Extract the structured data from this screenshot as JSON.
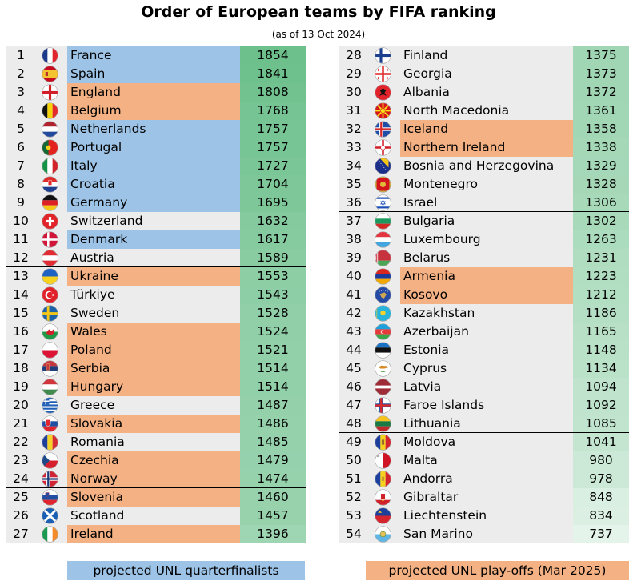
{
  "title": "Order of European teams by FIFA ranking",
  "subtitle": "(as of 13 Oct 2024)",
  "colors": {
    "qf": "#9dc3e6",
    "po": "#f4b183",
    "score_dark": "#6dc08c",
    "score_light": "#e5f4ea",
    "neutral": "#ececec"
  },
  "legend": {
    "qf_label": "projected UNL quarterfinalists",
    "po_label": "projected UNL play-offs (Mar 2025)"
  },
  "teams": [
    {
      "rank": "1",
      "name": "France",
      "points": "1854",
      "status": "qf",
      "flag": "france-flag-icon"
    },
    {
      "rank": "2",
      "name": "Spain",
      "points": "1841",
      "status": "qf",
      "flag": "spain-flag-icon"
    },
    {
      "rank": "3",
      "name": "England",
      "points": "1808",
      "status": "po",
      "flag": "england-flag-icon"
    },
    {
      "rank": "4",
      "name": "Belgium",
      "points": "1768",
      "status": "po",
      "flag": "belgium-flag-icon"
    },
    {
      "rank": "5",
      "name": "Netherlands",
      "points": "1757",
      "status": "qf",
      "flag": "netherlands-flag-icon"
    },
    {
      "rank": "6",
      "name": "Portugal",
      "points": "1757",
      "status": "qf",
      "flag": "portugal-flag-icon"
    },
    {
      "rank": "7",
      "name": "Italy",
      "points": "1727",
      "status": "qf",
      "flag": "italy-flag-icon"
    },
    {
      "rank": "8",
      "name": "Croatia",
      "points": "1704",
      "status": "qf",
      "flag": "croatia-flag-icon"
    },
    {
      "rank": "9",
      "name": "Germany",
      "points": "1695",
      "status": "qf",
      "flag": "germany-flag-icon"
    },
    {
      "rank": "10",
      "name": "Switzerland",
      "points": "1632",
      "status": "none",
      "flag": "switzerland-flag-icon"
    },
    {
      "rank": "11",
      "name": "Denmark",
      "points": "1617",
      "status": "qf",
      "flag": "denmark-flag-icon"
    },
    {
      "rank": "12",
      "name": "Austria",
      "points": "1589",
      "status": "none",
      "flag": "austria-flag-icon",
      "separator": true
    },
    {
      "rank": "13",
      "name": "Ukraine",
      "points": "1553",
      "status": "po",
      "flag": "ukraine-flag-icon"
    },
    {
      "rank": "14",
      "name": "Türkiye",
      "points": "1543",
      "status": "none",
      "flag": "turkiye-flag-icon"
    },
    {
      "rank": "15",
      "name": "Sweden",
      "points": "1528",
      "status": "none",
      "flag": "sweden-flag-icon"
    },
    {
      "rank": "16",
      "name": "Wales",
      "points": "1524",
      "status": "po",
      "flag": "wales-flag-icon"
    },
    {
      "rank": "17",
      "name": "Poland",
      "points": "1521",
      "status": "po",
      "flag": "poland-flag-icon"
    },
    {
      "rank": "18",
      "name": "Serbia",
      "points": "1514",
      "status": "po",
      "flag": "serbia-flag-icon"
    },
    {
      "rank": "19",
      "name": "Hungary",
      "points": "1514",
      "status": "po",
      "flag": "hungary-flag-icon"
    },
    {
      "rank": "20",
      "name": "Greece",
      "points": "1487",
      "status": "none",
      "flag": "greece-flag-icon"
    },
    {
      "rank": "21",
      "name": "Slovakia",
      "points": "1486",
      "status": "po",
      "flag": "slovakia-flag-icon"
    },
    {
      "rank": "22",
      "name": "Romania",
      "points": "1485",
      "status": "none",
      "flag": "romania-flag-icon"
    },
    {
      "rank": "23",
      "name": "Czechia",
      "points": "1479",
      "status": "po",
      "flag": "czechia-flag-icon"
    },
    {
      "rank": "24",
      "name": "Norway",
      "points": "1474",
      "status": "po",
      "flag": "norway-flag-icon",
      "separator": true
    },
    {
      "rank": "25",
      "name": "Slovenia",
      "points": "1460",
      "status": "po",
      "flag": "slovenia-flag-icon"
    },
    {
      "rank": "26",
      "name": "Scotland",
      "points": "1457",
      "status": "none",
      "flag": "scotland-flag-icon"
    },
    {
      "rank": "27",
      "name": "Ireland",
      "points": "1396",
      "status": "po",
      "flag": "ireland-flag-icon"
    },
    {
      "rank": "28",
      "name": "Finland",
      "points": "1375",
      "status": "none",
      "flag": "finland-flag-icon"
    },
    {
      "rank": "29",
      "name": "Georgia",
      "points": "1373",
      "status": "none",
      "flag": "georgia-flag-icon"
    },
    {
      "rank": "30",
      "name": "Albania",
      "points": "1372",
      "status": "none",
      "flag": "albania-flag-icon"
    },
    {
      "rank": "31",
      "name": "North Macedonia",
      "points": "1361",
      "status": "none",
      "flag": "north-macedonia-flag-icon"
    },
    {
      "rank": "32",
      "name": "Iceland",
      "points": "1358",
      "status": "po",
      "flag": "iceland-flag-icon"
    },
    {
      "rank": "33",
      "name": "Northern Ireland",
      "points": "1338",
      "status": "po",
      "flag": "northern-ireland-flag-icon"
    },
    {
      "rank": "34",
      "name": "Bosnia and Herzegovina",
      "points": "1329",
      "status": "none",
      "flag": "bosnia-flag-icon"
    },
    {
      "rank": "35",
      "name": "Montenegro",
      "points": "1328",
      "status": "none",
      "flag": "montenegro-flag-icon"
    },
    {
      "rank": "36",
      "name": "Israel",
      "points": "1306",
      "status": "none",
      "flag": "israel-flag-icon",
      "separator": true
    },
    {
      "rank": "37",
      "name": "Bulgaria",
      "points": "1302",
      "status": "none",
      "flag": "bulgaria-flag-icon"
    },
    {
      "rank": "38",
      "name": "Luxembourg",
      "points": "1263",
      "status": "none",
      "flag": "luxembourg-flag-icon"
    },
    {
      "rank": "39",
      "name": "Belarus",
      "points": "1231",
      "status": "none",
      "flag": "belarus-flag-icon"
    },
    {
      "rank": "40",
      "name": "Armenia",
      "points": "1223",
      "status": "po",
      "flag": "armenia-flag-icon"
    },
    {
      "rank": "41",
      "name": "Kosovo",
      "points": "1212",
      "status": "po",
      "flag": "kosovo-flag-icon"
    },
    {
      "rank": "42",
      "name": "Kazakhstan",
      "points": "1186",
      "status": "none",
      "flag": "kazakhstan-flag-icon"
    },
    {
      "rank": "43",
      "name": "Azerbaijan",
      "points": "1165",
      "status": "none",
      "flag": "azerbaijan-flag-icon"
    },
    {
      "rank": "44",
      "name": "Estonia",
      "points": "1148",
      "status": "none",
      "flag": "estonia-flag-icon"
    },
    {
      "rank": "45",
      "name": "Cyprus",
      "points": "1134",
      "status": "none",
      "flag": "cyprus-flag-icon"
    },
    {
      "rank": "46",
      "name": "Latvia",
      "points": "1094",
      "status": "none",
      "flag": "latvia-flag-icon"
    },
    {
      "rank": "47",
      "name": "Faroe Islands",
      "points": "1092",
      "status": "none",
      "flag": "faroe-islands-flag-icon"
    },
    {
      "rank": "48",
      "name": "Lithuania",
      "points": "1085",
      "status": "none",
      "flag": "lithuania-flag-icon",
      "separator": true
    },
    {
      "rank": "49",
      "name": "Moldova",
      "points": "1041",
      "status": "none",
      "flag": "moldova-flag-icon"
    },
    {
      "rank": "50",
      "name": "Malta",
      "points": "980",
      "status": "none",
      "flag": "malta-flag-icon"
    },
    {
      "rank": "51",
      "name": "Andorra",
      "points": "978",
      "status": "none",
      "flag": "andorra-flag-icon"
    },
    {
      "rank": "52",
      "name": "Gibraltar",
      "points": "848",
      "status": "none",
      "flag": "gibraltar-flag-icon"
    },
    {
      "rank": "53",
      "name": "Liechtenstein",
      "points": "834",
      "status": "none",
      "flag": "liechtenstein-flag-icon"
    },
    {
      "rank": "54",
      "name": "San Marino",
      "points": "737",
      "status": "none",
      "flag": "san-marino-flag-icon"
    }
  ]
}
